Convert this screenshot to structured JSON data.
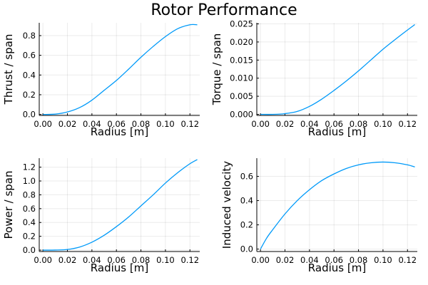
{
  "title": "Rotor Performance",
  "chart_data": [
    {
      "type": "line",
      "xlabel": "Radius [m]",
      "ylabel": "Thrust / span",
      "xlim": [
        -0.003,
        0.128
      ],
      "ylim": [
        -0.01,
        0.93
      ],
      "xticks": [
        0.0,
        0.02,
        0.04,
        0.06,
        0.08,
        0.1,
        0.12
      ],
      "xtick_labels": [
        "0.00",
        "0.02",
        "0.04",
        "0.06",
        "0.08",
        "0.10",
        "0.12"
      ],
      "yticks": [
        0.0,
        0.2,
        0.4,
        0.6,
        0.8
      ],
      "ytick_labels": [
        "0.0",
        "0.2",
        "0.4",
        "0.6",
        "0.8"
      ],
      "grid": true,
      "color": "#009af9",
      "series": [
        {
          "x": [
            0.0,
            0.01,
            0.02,
            0.03,
            0.04,
            0.05,
            0.06,
            0.07,
            0.08,
            0.09,
            0.1,
            0.11,
            0.12,
            0.126
          ],
          "y": [
            0.0,
            0.003,
            0.025,
            0.07,
            0.145,
            0.245,
            0.345,
            0.46,
            0.58,
            0.69,
            0.79,
            0.87,
            0.91,
            0.91
          ]
        }
      ]
    },
    {
      "type": "line",
      "xlabel": "Radius [m]",
      "ylabel": "Torque / span",
      "xlim": [
        -0.003,
        0.128
      ],
      "ylim": [
        -0.0003,
        0.0253
      ],
      "xticks": [
        0.0,
        0.02,
        0.04,
        0.06,
        0.08,
        0.1,
        0.12
      ],
      "xtick_labels": [
        "0.00",
        "0.02",
        "0.04",
        "0.06",
        "0.08",
        "0.10",
        "0.12"
      ],
      "yticks": [
        0.0,
        0.005,
        0.01,
        0.015,
        0.02,
        0.025
      ],
      "ytick_labels": [
        "0.000",
        "0.005",
        "0.010",
        "0.015",
        "0.020",
        "0.025"
      ],
      "grid": true,
      "color": "#009af9",
      "series": [
        {
          "x": [
            0.0,
            0.01,
            0.02,
            0.03,
            0.04,
            0.05,
            0.06,
            0.07,
            0.08,
            0.09,
            0.1,
            0.11,
            0.12,
            0.126
          ],
          "y": [
            0.0,
            0.0,
            0.0002,
            0.0008,
            0.0022,
            0.0042,
            0.0066,
            0.0092,
            0.012,
            0.015,
            0.018,
            0.0207,
            0.0233,
            0.0248
          ]
        }
      ]
    },
    {
      "type": "line",
      "xlabel": "Radius [m]",
      "ylabel": "Power / span",
      "xlim": [
        -0.003,
        0.128
      ],
      "ylim": [
        -0.02,
        1.33
      ],
      "xticks": [
        0.0,
        0.02,
        0.04,
        0.06,
        0.08,
        0.1,
        0.12
      ],
      "xtick_labels": [
        "0.00",
        "0.02",
        "0.04",
        "0.06",
        "0.08",
        "0.10",
        "0.12"
      ],
      "yticks": [
        0.0,
        0.2,
        0.4,
        0.6,
        0.8,
        1.0,
        1.2
      ],
      "ytick_labels": [
        "0.0",
        "0.2",
        "0.4",
        "0.6",
        "0.8",
        "1.0",
        "1.2"
      ],
      "grid": true,
      "color": "#009af9",
      "series": [
        {
          "x": [
            0.0,
            0.01,
            0.02,
            0.03,
            0.04,
            0.05,
            0.06,
            0.07,
            0.08,
            0.09,
            0.1,
            0.11,
            0.12,
            0.126
          ],
          "y": [
            0.0,
            0.001,
            0.01,
            0.045,
            0.115,
            0.215,
            0.34,
            0.48,
            0.64,
            0.8,
            0.97,
            1.12,
            1.25,
            1.31
          ]
        }
      ]
    },
    {
      "type": "line",
      "xlabel": "Radius [m]",
      "ylabel": "Induced velocity",
      "xlim": [
        -0.003,
        0.128
      ],
      "ylim": [
        -0.02,
        0.75
      ],
      "xticks": [
        0.0,
        0.02,
        0.04,
        0.06,
        0.08,
        0.1,
        0.12
      ],
      "xtick_labels": [
        "0.00",
        "0.02",
        "0.04",
        "0.06",
        "0.08",
        "0.10",
        "0.12"
      ],
      "yticks": [
        0.0,
        0.2,
        0.4,
        0.6
      ],
      "ytick_labels": [
        "0.0",
        "0.2",
        "0.4",
        "0.6"
      ],
      "grid": true,
      "color": "#009af9",
      "series": [
        {
          "x": [
            0.0,
            0.005,
            0.01,
            0.02,
            0.03,
            0.04,
            0.05,
            0.06,
            0.07,
            0.08,
            0.09,
            0.1,
            0.11,
            0.12,
            0.126
          ],
          "y": [
            0.0,
            0.09,
            0.16,
            0.29,
            0.4,
            0.49,
            0.565,
            0.62,
            0.665,
            0.695,
            0.712,
            0.718,
            0.712,
            0.695,
            0.678
          ]
        }
      ]
    }
  ]
}
